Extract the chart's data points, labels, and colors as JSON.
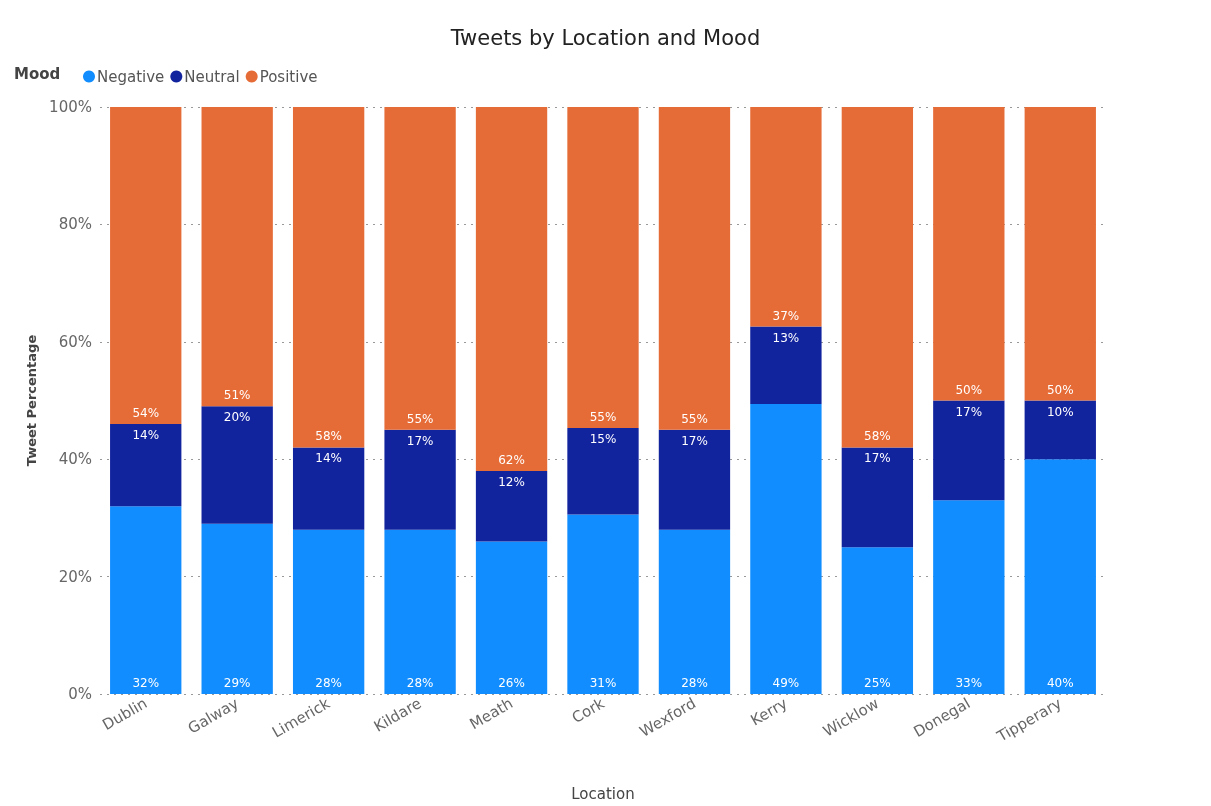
{
  "chart_data": {
    "type": "bar",
    "stacked": true,
    "title": "Tweets by Location and Mood",
    "xlabel": "Location",
    "ylabel": "Tweet Percentage",
    "legend_title": "Mood",
    "legend": "top left",
    "grid": "y",
    "categories": [
      "Dublin",
      "Galway",
      "Limerick",
      "Kildare",
      "Meath",
      "Cork",
      "Wexford",
      "Kerry",
      "Wicklow",
      "Donegal",
      "Tipperary"
    ],
    "ylim": [
      0,
      100
    ],
    "yticks": [
      {
        "value": 0,
        "label": "0%"
      },
      {
        "value": 20,
        "label": "20%"
      },
      {
        "value": 40,
        "label": "40%"
      },
      {
        "value": 60,
        "label": "60%"
      },
      {
        "value": 80,
        "label": "80%"
      },
      {
        "value": 100,
        "label": "100%"
      }
    ],
    "series": [
      {
        "name": "Negative",
        "color": "#118dff",
        "values": [
          32,
          29,
          28,
          28,
          26,
          30.6,
          28,
          49.4,
          25,
          33,
          40
        ],
        "value_labels": [
          "32%",
          "29%",
          "28%",
          "28%",
          "26%",
          "31%",
          "28%",
          "49%",
          "25%",
          "33%",
          "40%"
        ]
      },
      {
        "name": "Neutral",
        "color": "#12239e",
        "values": [
          14,
          20,
          14,
          17,
          12,
          14.7,
          17,
          13.2,
          17,
          17,
          10
        ],
        "value_labels": [
          "14%",
          "20%",
          "14%",
          "17%",
          "12%",
          "15%",
          "17%",
          "13%",
          "17%",
          "17%",
          "10%"
        ]
      },
      {
        "name": "Positive",
        "color": "#e66c37",
        "values": [
          54,
          51,
          58,
          55,
          62,
          54.7,
          55,
          37.4,
          58,
          50,
          50
        ],
        "value_labels": [
          "54%",
          "51%",
          "58%",
          "55%",
          "62%",
          "55%",
          "55%",
          "37%",
          "58%",
          "50%",
          "50%"
        ]
      }
    ]
  }
}
